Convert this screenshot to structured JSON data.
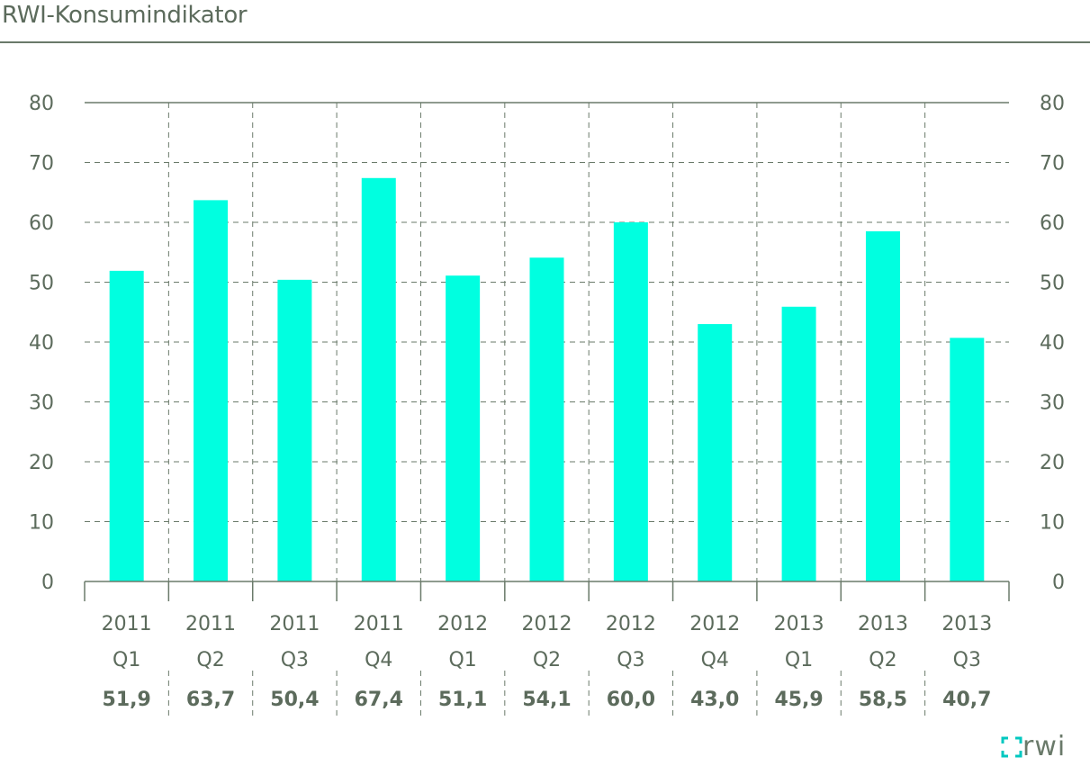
{
  "title": "RWI-Konsumindikator",
  "logo_text": "rwi",
  "colors": {
    "bar": "#00ffe0",
    "text": "#5c6b5c",
    "grid": "#6a7a6a"
  },
  "chart_data": {
    "type": "bar",
    "title": "RWI-Konsumindikator",
    "categories": [
      "2011 Q1",
      "2011 Q2",
      "2011 Q3",
      "2011 Q4",
      "2012 Q1",
      "2012 Q2",
      "2012 Q3",
      "2012 Q4",
      "2013 Q1",
      "2013 Q2",
      "2013 Q3"
    ],
    "years": [
      "2011",
      "2011",
      "2011",
      "2011",
      "2012",
      "2012",
      "2012",
      "2012",
      "2013",
      "2013",
      "2013"
    ],
    "quarters": [
      "Q1",
      "Q2",
      "Q3",
      "Q4",
      "Q1",
      "Q2",
      "Q3",
      "Q4",
      "Q1",
      "Q2",
      "Q3"
    ],
    "values": [
      51.9,
      63.7,
      50.4,
      67.4,
      51.1,
      54.1,
      60.0,
      43.0,
      45.9,
      58.5,
      40.7
    ],
    "value_labels": [
      "51,9",
      "63,7",
      "50,4",
      "67,4",
      "51,1",
      "54,1",
      "60,0",
      "43,0",
      "45,9",
      "58,5",
      "40,7"
    ],
    "ylim": [
      0,
      80
    ],
    "yticks": [
      0,
      10,
      20,
      30,
      40,
      50,
      60,
      70,
      80
    ],
    "grid": true,
    "xlabel": "",
    "ylabel": ""
  }
}
